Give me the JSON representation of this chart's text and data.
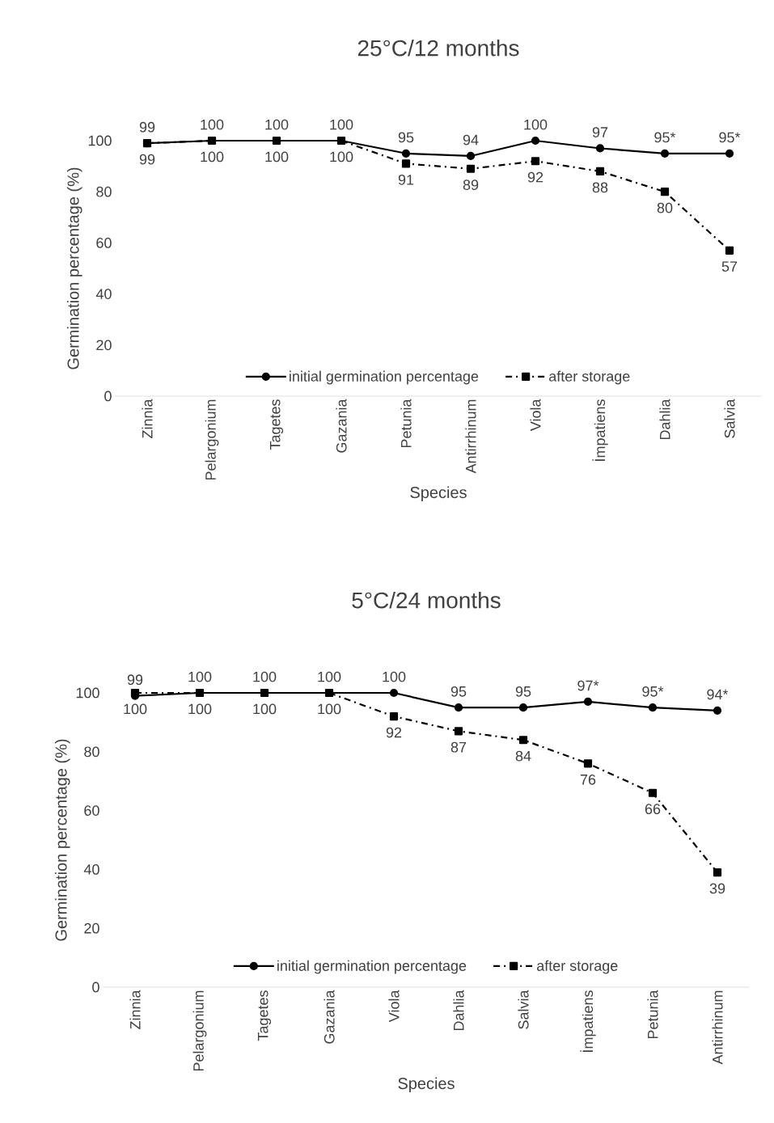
{
  "chart_data": [
    {
      "type": "line",
      "title": "25°C/12 months",
      "xlabel": "Species",
      "ylabel": "Germination percentage (%)",
      "categories": [
        "Zinnia",
        "Pelargonium",
        "Tagetes",
        "Gazania",
        "Petunia",
        "Antirrhinum",
        "Viola",
        "İmpatiens",
        "Dahlia",
        "Salvia"
      ],
      "ylim": [
        0,
        100
      ],
      "yticks": [
        0,
        20,
        40,
        60,
        80,
        100
      ],
      "legend": "bottom",
      "series": [
        {
          "name": "initial germination percentage",
          "color": "#000000",
          "marker": "circle",
          "line_style": "solid",
          "values": [
            99,
            100,
            100,
            100,
            95,
            94,
            100,
            97,
            95,
            95
          ],
          "value_labels": [
            "99",
            "100",
            "100",
            "100",
            "95",
            "94",
            "100",
            "97",
            "95*",
            "95*"
          ]
        },
        {
          "name": "after storage",
          "color": "#000000",
          "marker": "square",
          "line_style": "dashed",
          "values": [
            99,
            100,
            100,
            100,
            91,
            89,
            92,
            88,
            80,
            57
          ],
          "value_labels": [
            "99",
            "100",
            "100",
            "100",
            "91",
            "89",
            "92",
            "88",
            "80",
            "57"
          ]
        }
      ]
    },
    {
      "type": "line",
      "title": "5°C/24 months",
      "xlabel": "Species",
      "ylabel": "Germination percentage (%)",
      "categories": [
        "Zinnia",
        "Pelargonium",
        "Tagetes",
        "Gazania",
        "Viola",
        "Dahlia",
        "Salvia",
        "İmpatiens",
        "Petunia",
        "Antirrhinum"
      ],
      "ylim": [
        0,
        100
      ],
      "yticks": [
        0,
        20,
        40,
        60,
        80,
        100
      ],
      "legend": "bottom",
      "series": [
        {
          "name": "initial germination percentage",
          "color": "#000000",
          "marker": "circle",
          "line_style": "solid",
          "values": [
            99,
            100,
            100,
            100,
            100,
            95,
            95,
            97,
            95,
            94
          ],
          "value_labels": [
            "99",
            "100",
            "100",
            "100",
            "100",
            "95",
            "95",
            "97*",
            "95*",
            "94*"
          ]
        },
        {
          "name": "after storage",
          "color": "#000000",
          "marker": "square",
          "line_style": "dashed",
          "values": [
            100,
            100,
            100,
            100,
            92,
            87,
            84,
            76,
            66,
            39
          ],
          "value_labels": [
            "100",
            "100",
            "100",
            "100",
            "92",
            "87",
            "84",
            "76",
            "66",
            "39"
          ]
        }
      ]
    }
  ]
}
